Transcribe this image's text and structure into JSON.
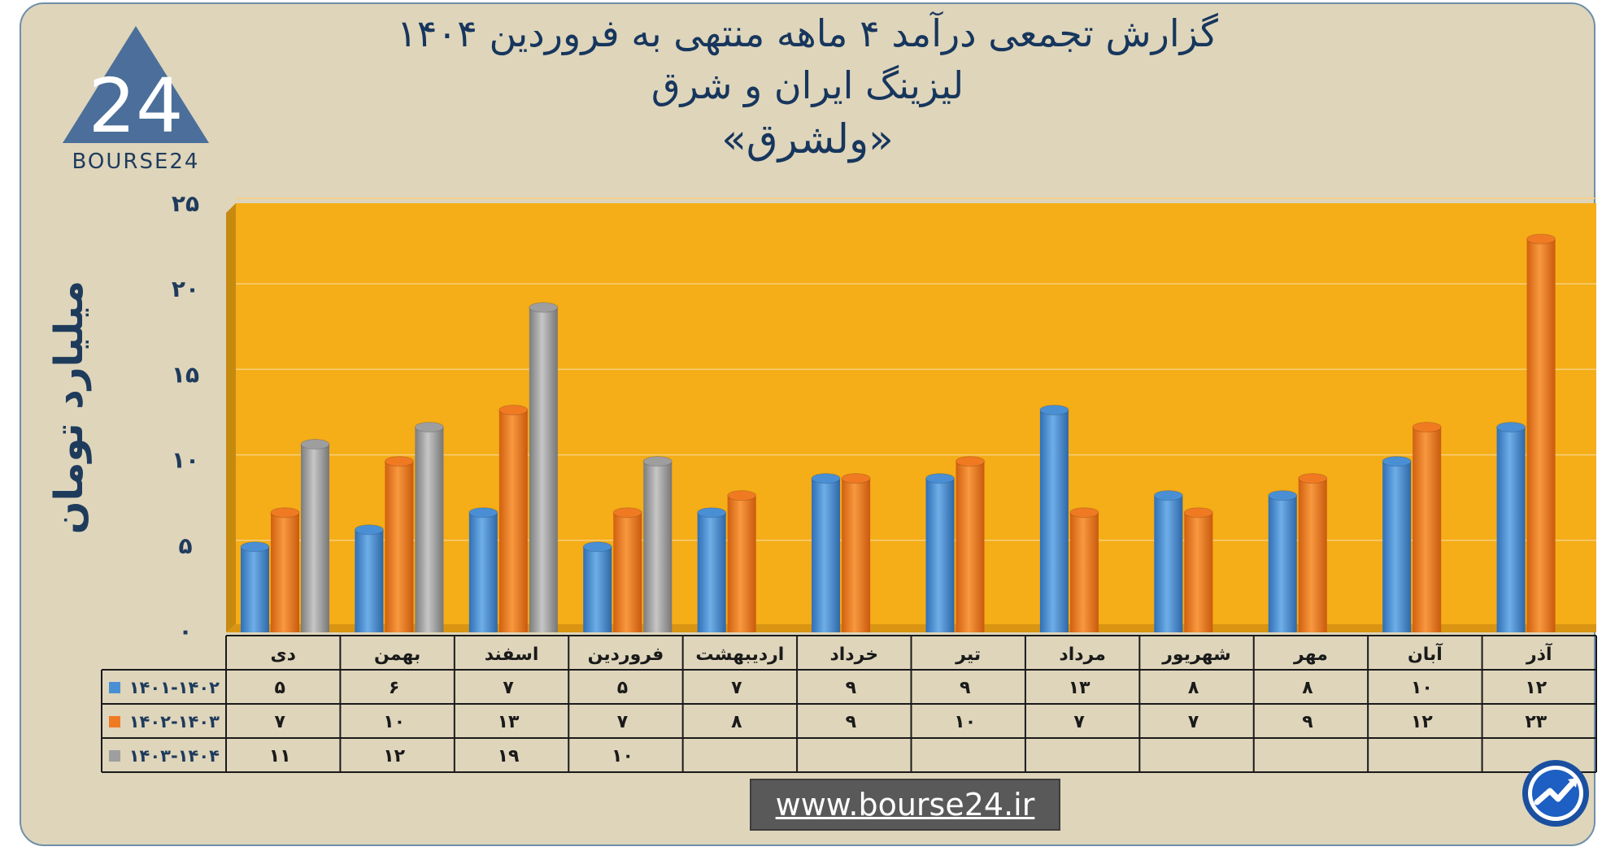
{
  "title": {
    "line1": "گزارش تجمعی درآمد ۴ ماهه منتهی به فروردین ۱۴۰۴",
    "line2": "لیزینگ ایران و شرق",
    "line3": "«ولشرق»"
  },
  "logo": {
    "text": "BOURSE24",
    "mark": "24"
  },
  "footer": {
    "url": "www.bourse24.ir",
    "badge_icon": "trend-arrow-icon"
  },
  "colors": {
    "plot_bg": "#f5ad18",
    "side_wall": "#c78a10",
    "frame_bg": "#ded5bb",
    "text": "#1f3b5c"
  },
  "chart_data": {
    "type": "bar",
    "ylabel": "میلیارد تومان",
    "ylim": [
      0,
      25
    ],
    "yticks": [
      "۰",
      "۵",
      "۱۰",
      "۱۵",
      "۲۰",
      "۲۵"
    ],
    "categories": [
      "دی",
      "بهمن",
      "اسفند",
      "فروردین",
      "اردیبهشت",
      "خرداد",
      "تیر",
      "مرداد",
      "شهریور",
      "مهر",
      "آبان",
      "آذر"
    ],
    "series": [
      {
        "name": "۱۴۰۱-۱۴۰۲",
        "color": "#4a8fd4",
        "values": [
          5,
          6,
          7,
          5,
          7,
          9,
          9,
          13,
          8,
          8,
          10,
          12
        ],
        "labels": [
          "۵",
          "۶",
          "۷",
          "۵",
          "۷",
          "۹",
          "۹",
          "۱۳",
          "۸",
          "۸",
          "۱۰",
          "۱۲"
        ]
      },
      {
        "name": "۱۴۰۲-۱۴۰۳",
        "color": "#f07a22",
        "values": [
          7,
          10,
          13,
          7,
          8,
          9,
          10,
          7,
          7,
          9,
          12,
          23
        ],
        "labels": [
          "۷",
          "۱۰",
          "۱۳",
          "۷",
          "۸",
          "۹",
          "۱۰",
          "۷",
          "۷",
          "۹",
          "۱۲",
          "۲۳"
        ]
      },
      {
        "name": "۱۴۰۳-۱۴۰۴",
        "color": "#9e9e9e",
        "values": [
          11,
          12,
          19,
          10,
          null,
          null,
          null,
          null,
          null,
          null,
          null,
          null
        ],
        "labels": [
          "۱۱",
          "۱۲",
          "۱۹",
          "۱۰",
          "",
          "",
          "",
          "",
          "",
          "",
          "",
          ""
        ]
      }
    ],
    "grid": true,
    "legend": "table-left"
  }
}
